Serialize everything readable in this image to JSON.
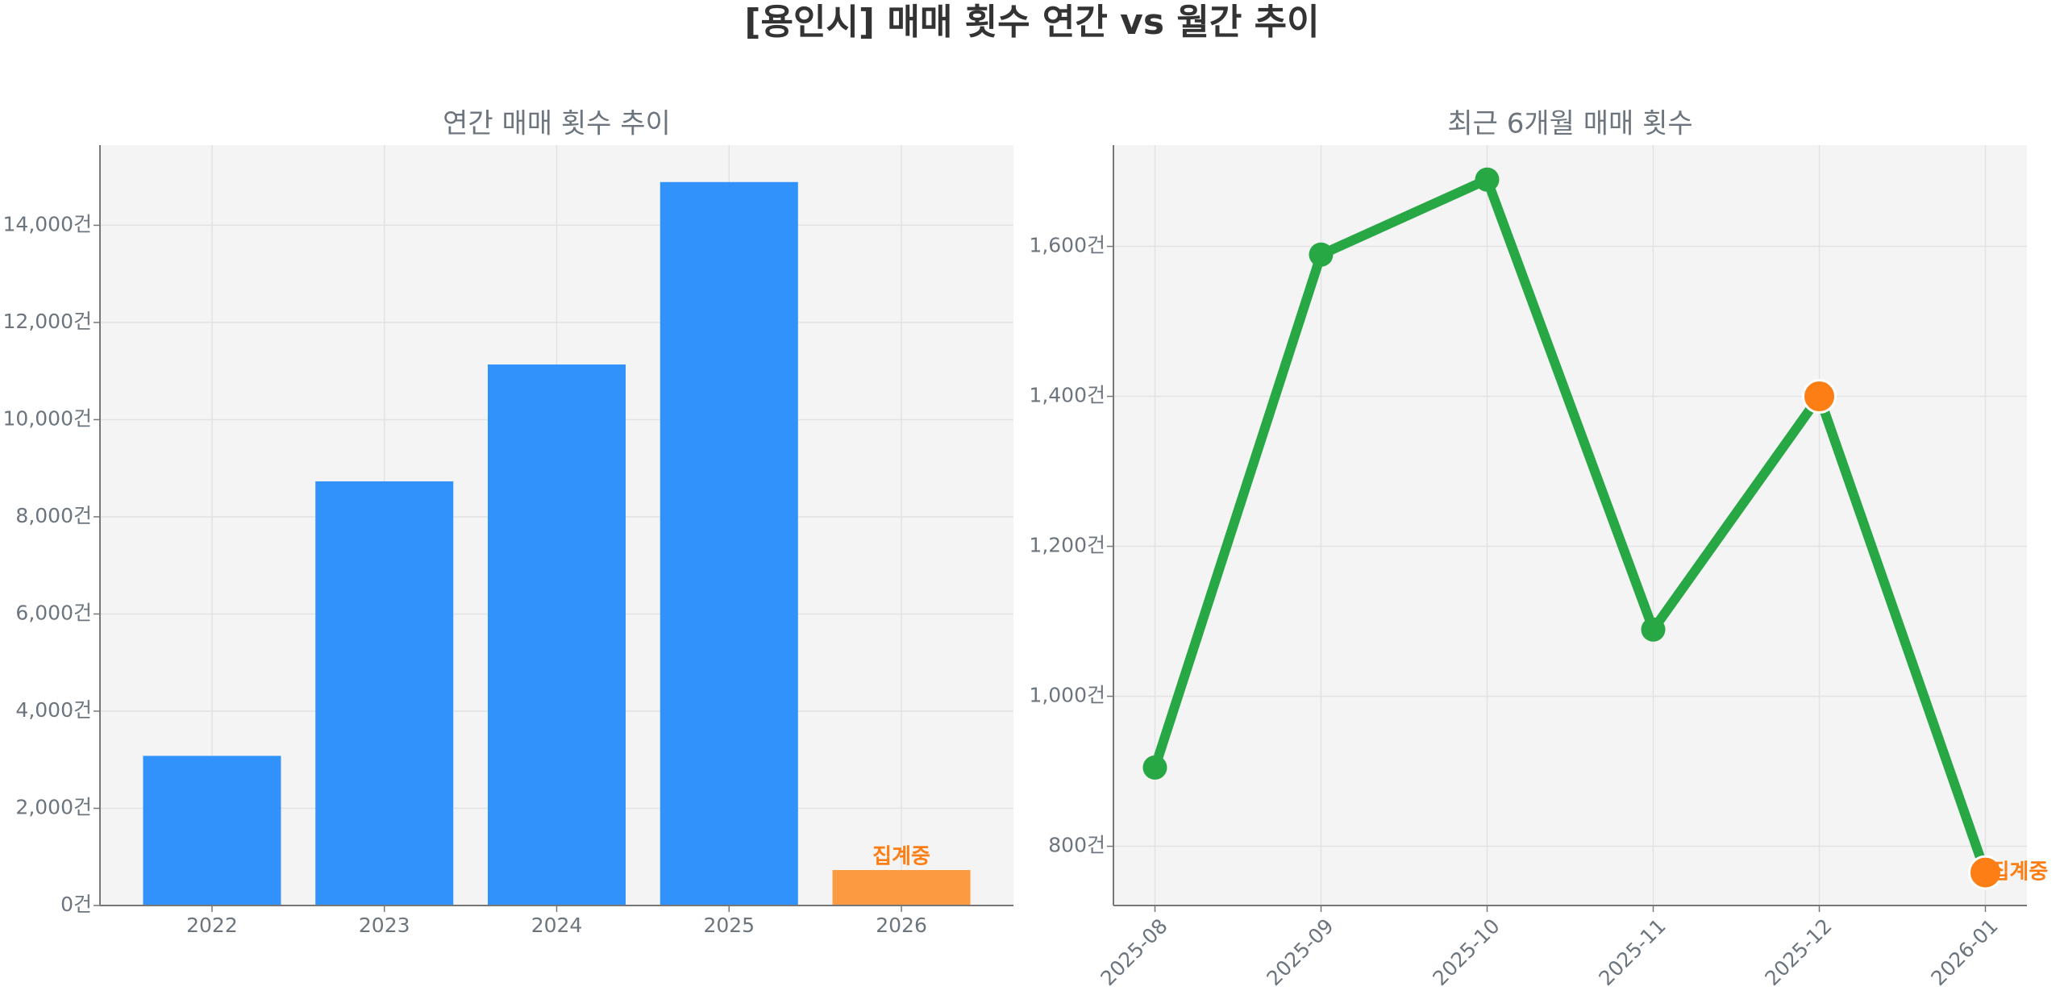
{
  "title": "[용인시] 매매 횟수 연간 vs 월간 추이",
  "chart_data": [
    {
      "type": "bar",
      "title": "연간 매매 횟수 추이",
      "categories": [
        "2022",
        "2023",
        "2024",
        "2025",
        "2026"
      ],
      "values": [
        3080,
        8730,
        11135,
        14890,
        730
      ],
      "colors": [
        "#3192fb",
        "#3192fb",
        "#3192fb",
        "#3192fb",
        "#fb9a40"
      ],
      "ylim": [
        0,
        15650
      ],
      "yticks": [
        {
          "value": 0,
          "label": "0건"
        },
        {
          "value": 2000,
          "label": "2,000건"
        },
        {
          "value": 4000,
          "label": "4,000건"
        },
        {
          "value": 6000,
          "label": "6,000건"
        },
        {
          "value": 8000,
          "label": "8,000건"
        },
        {
          "value": 10000,
          "label": "10,000건"
        },
        {
          "value": 12000,
          "label": "12,000건"
        },
        {
          "value": 14000,
          "label": "14,000건"
        }
      ],
      "grid": true,
      "annotations": [
        {
          "text": "집계중",
          "category": "2026",
          "color": "#fd7e14"
        }
      ]
    },
    {
      "type": "line",
      "title": "최근 6개월 매매 횟수",
      "categories": [
        "2025-08",
        "2025-09",
        "2025-10",
        "2025-11",
        "2025-12",
        "2026-01"
      ],
      "series": [
        {
          "color": "#28a745",
          "values": [
            905,
            1589,
            1689,
            1089,
            1400,
            765
          ],
          "marker_colors": [
            "#28a745",
            "#28a745",
            "#28a745",
            "#28a745",
            "#fd7e14",
            "#fd7e14"
          ]
        }
      ],
      "ylim": [
        721,
        1735
      ],
      "yticks": [
        {
          "value": 800,
          "label": "800건"
        },
        {
          "value": 1000,
          "label": "1,000건"
        },
        {
          "value": 1200,
          "label": "1,200건"
        },
        {
          "value": 1400,
          "label": "1,400건"
        },
        {
          "value": 1600,
          "label": "1,600건"
        }
      ],
      "grid": true,
      "annotations": [
        {
          "text": "집계중",
          "category": "2026-01",
          "color": "#fd7e14"
        }
      ]
    }
  ]
}
